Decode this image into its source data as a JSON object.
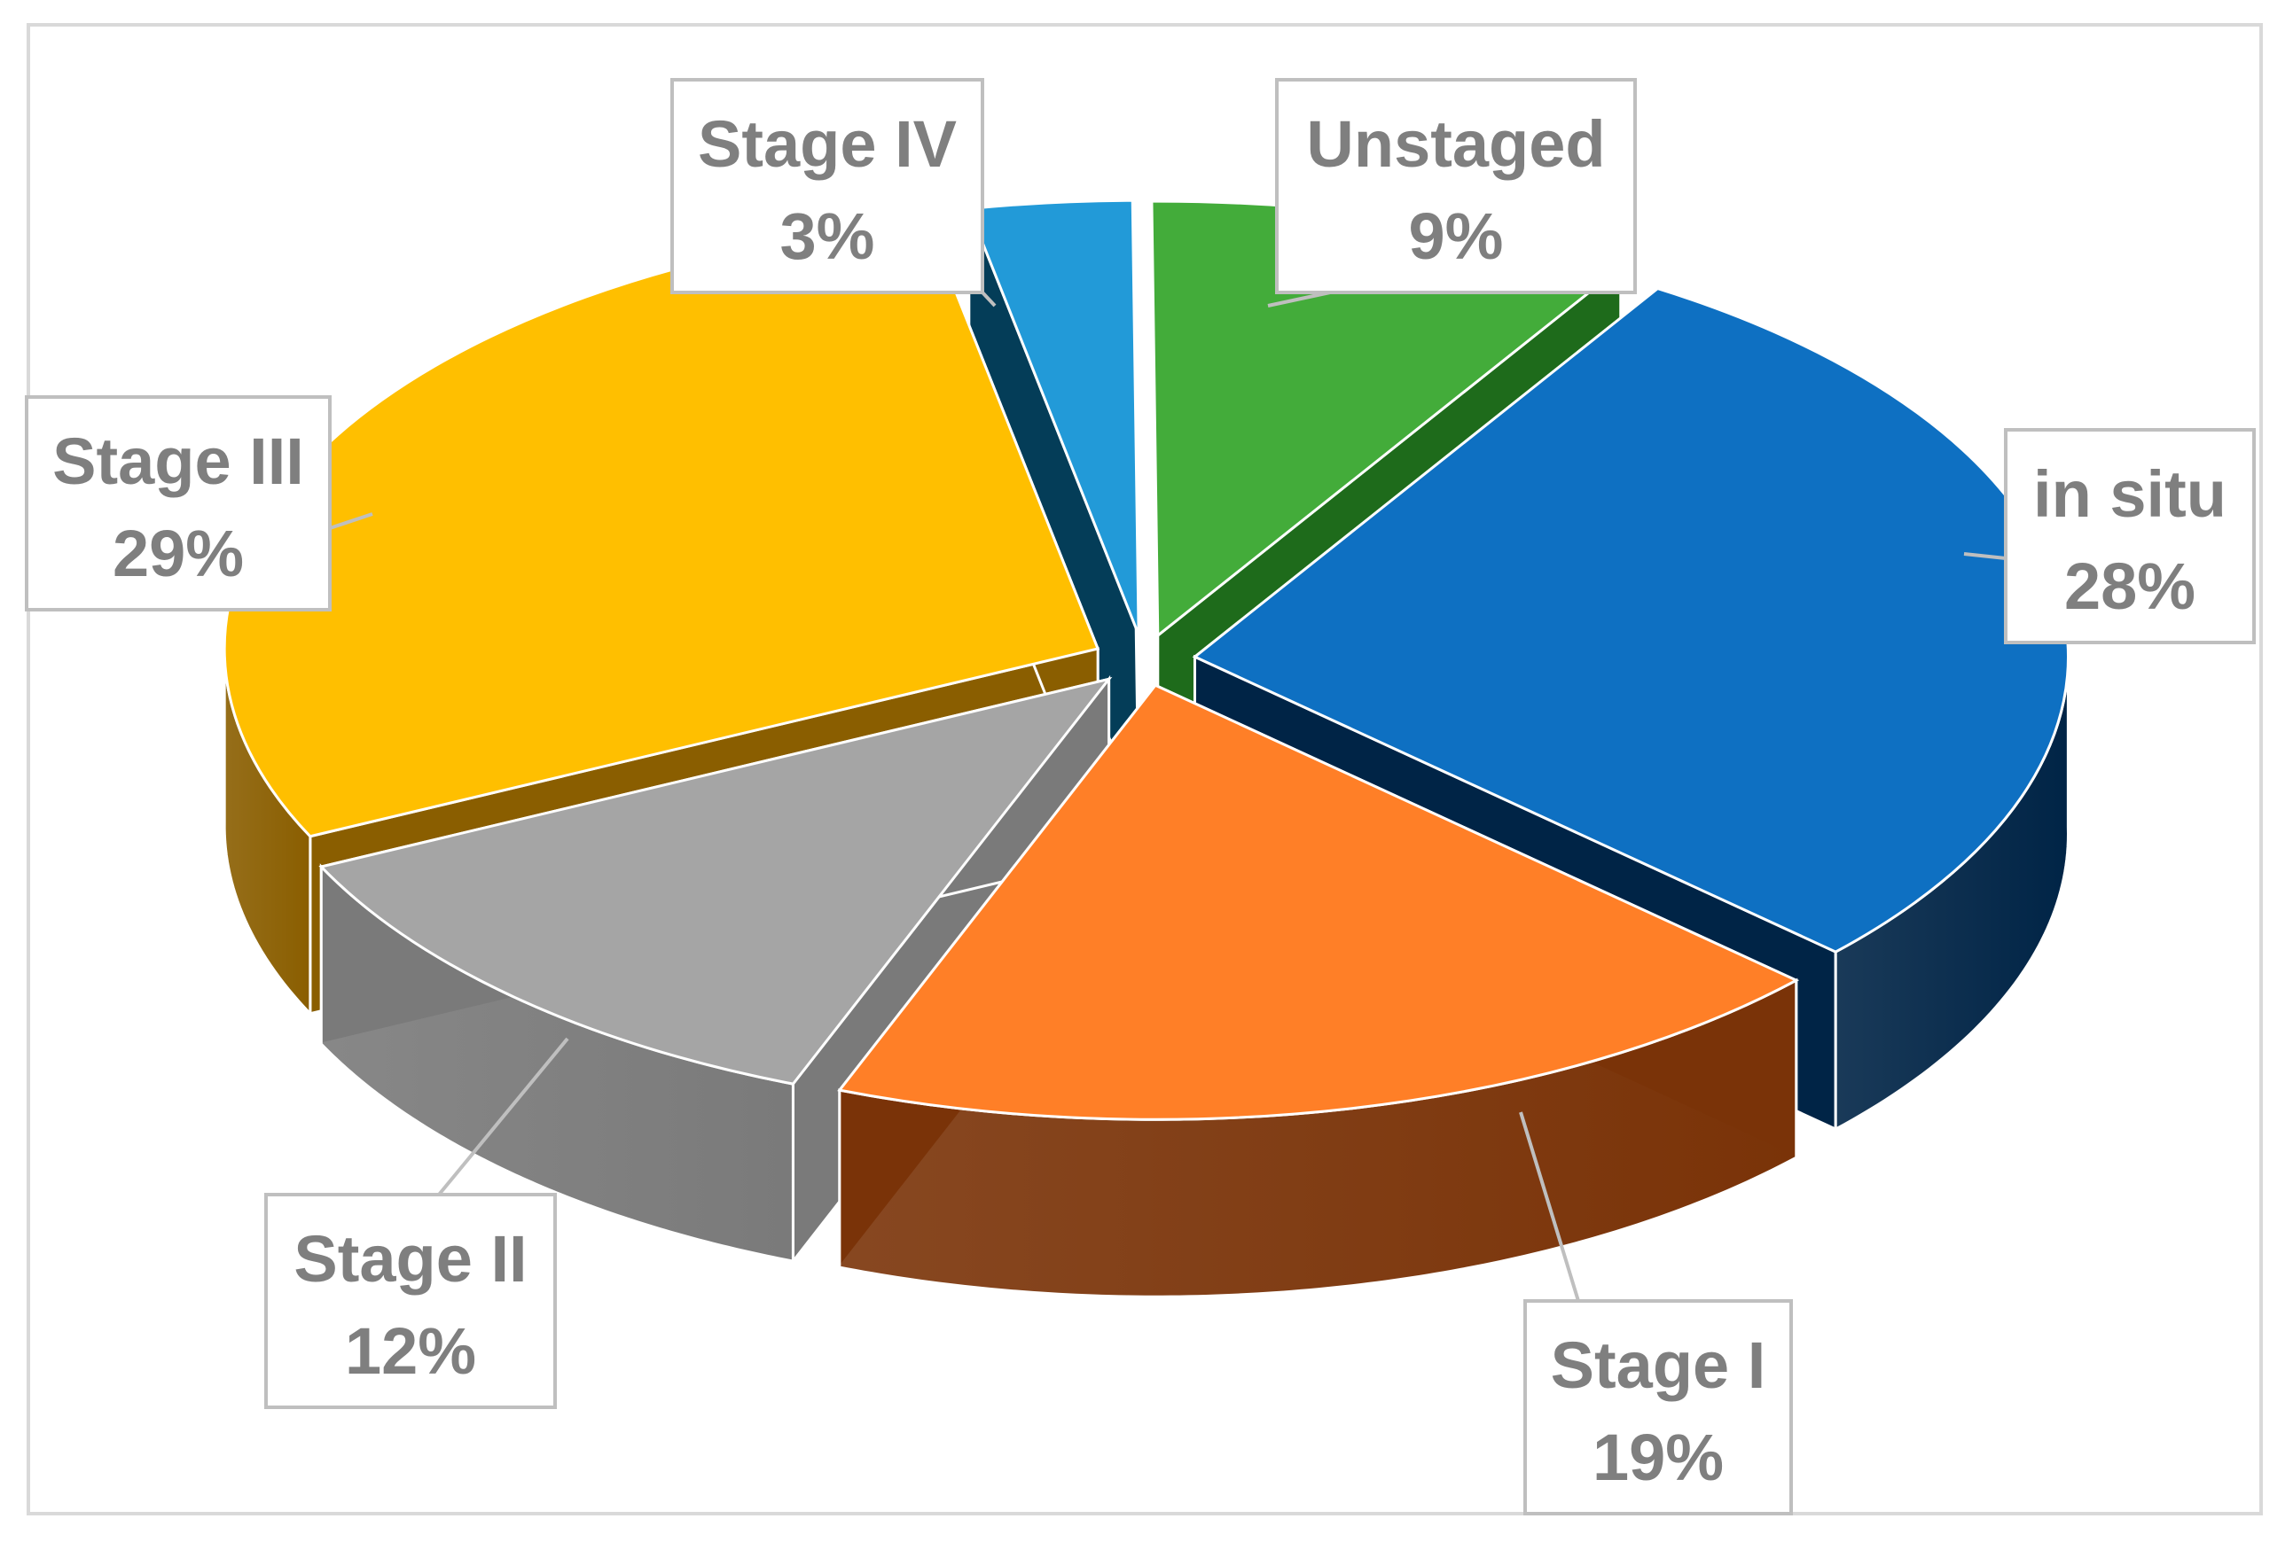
{
  "chart_data": {
    "type": "pie",
    "title": "",
    "unit": "%",
    "slices": [
      {
        "name": "in situ",
        "value": 28,
        "label": "28%",
        "color": "#0E70C2",
        "side": "#002446"
      },
      {
        "name": "Stage I",
        "value": 19,
        "label": "19%",
        "color": "#FF7F27",
        "side": "#7A3308"
      },
      {
        "name": "Stage II",
        "value": 12,
        "label": "12%",
        "color": "#A5A5A5",
        "side": "#7A7A7A"
      },
      {
        "name": "Stage III",
        "value": 29,
        "label": "29%",
        "color": "#FFBF00",
        "side": "#8A5E00"
      },
      {
        "name": "Stage IV",
        "value": 3,
        "label": "3%",
        "color": "#229AD8",
        "side": "#043D58"
      },
      {
        "name": "Unstaged",
        "value": 9,
        "label": "9%",
        "color": "#43AC3A",
        "side": "#1E6B1B"
      }
    ],
    "style": "3d-exploded",
    "legend": "none",
    "data_labels": "callouts"
  }
}
